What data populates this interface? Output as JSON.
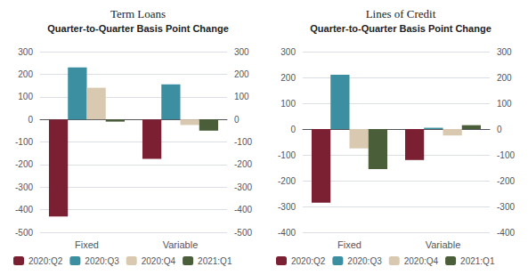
{
  "chart_data": [
    {
      "type": "bar",
      "title": "Term Loans",
      "subtitle": "Quarter-to-Quarter Basis Point Change",
      "categories": [
        "Fixed",
        "Variable"
      ],
      "series": [
        {
          "name": "2020:Q2",
          "color": "#7B2033",
          "values": [
            -430,
            -175
          ]
        },
        {
          "name": "2020:Q3",
          "color": "#3B8FA0",
          "values": [
            230,
            155
          ]
        },
        {
          "name": "2020:Q4",
          "color": "#D9C9B0",
          "values": [
            140,
            -25
          ]
        },
        {
          "name": "2021:Q1",
          "color": "#4A5E3A",
          "values": [
            -10,
            -50
          ]
        }
      ],
      "ylim": [
        -500,
        300
      ],
      "yticks": [
        -500,
        -400,
        -300,
        -200,
        -100,
        0,
        100,
        200,
        300
      ],
      "y2lim": [
        -500,
        300
      ],
      "y2ticks": [
        -500,
        -400,
        -300,
        -200,
        -100,
        0,
        100,
        200,
        300
      ],
      "grid": true,
      "legend": "bottom"
    },
    {
      "type": "bar",
      "title": "Lines of Credit",
      "subtitle": "Quarter-to-Quarter Basis Point Change",
      "categories": [
        "Fixed",
        "Variable"
      ],
      "series": [
        {
          "name": "2020:Q2",
          "color": "#7B2033",
          "values": [
            -285,
            -120
          ]
        },
        {
          "name": "2020:Q3",
          "color": "#3B8FA0",
          "values": [
            210,
            5
          ]
        },
        {
          "name": "2020:Q4",
          "color": "#D9C9B0",
          "values": [
            -75,
            -25
          ]
        },
        {
          "name": "2021:Q1",
          "color": "#4A5E3A",
          "values": [
            -155,
            15
          ]
        }
      ],
      "ylim": [
        -400,
        300
      ],
      "yticks": [
        -400,
        -300,
        -200,
        -100,
        0,
        100,
        200,
        300
      ],
      "y2lim": [
        -400,
        300
      ],
      "y2ticks": [
        -400,
        -300,
        -200,
        -100,
        0,
        100,
        200,
        300
      ],
      "grid": true,
      "legend": "bottom"
    }
  ]
}
